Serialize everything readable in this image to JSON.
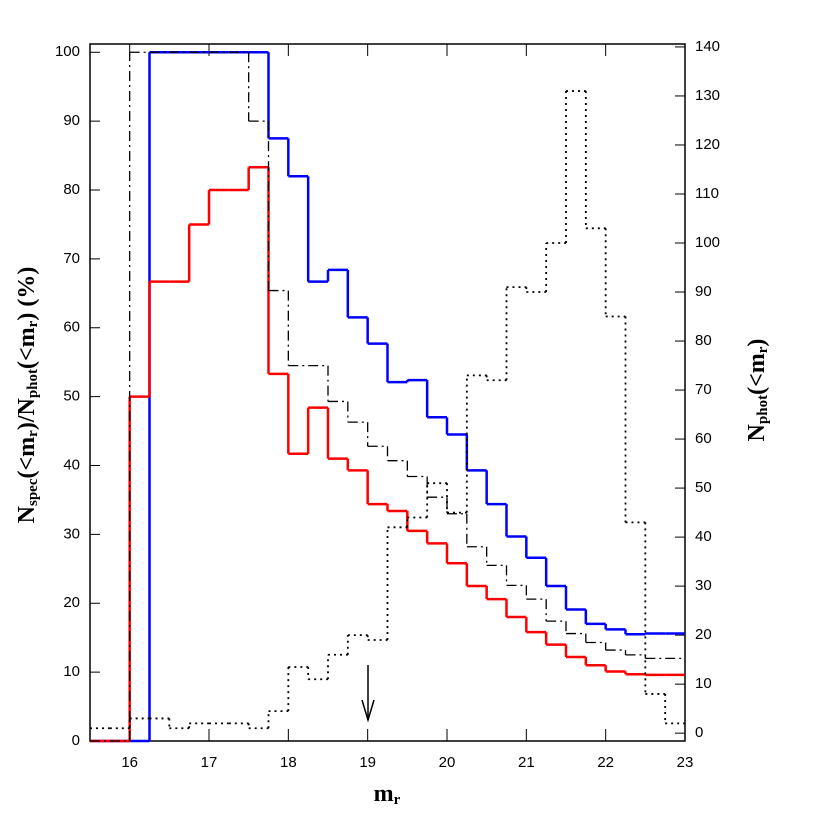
{
  "chart_data": {
    "type": "histogram",
    "xlabel": [
      {
        "text": "m"
      },
      {
        "text": "r",
        "sub": true
      }
    ],
    "ylabel": [
      {
        "text": "N"
      },
      {
        "text": "spec",
        "sub": true
      },
      {
        "text": "(<m"
      },
      {
        "text": "r",
        "sub": true
      },
      {
        "text": ")/N"
      },
      {
        "text": "phot",
        "sub": true
      },
      {
        "text": "(<m"
      },
      {
        "text": "r",
        "sub": true
      },
      {
        "text": ")  (%)"
      }
    ],
    "y2label": [
      {
        "text": "N"
      },
      {
        "text": "phot",
        "sub": true
      },
      {
        "text": "(<m"
      },
      {
        "text": "r",
        "sub": true
      },
      {
        "text": ")"
      }
    ],
    "bins": [
      15.5,
      15.75,
      16,
      16.25,
      16.5,
      16.75,
      17,
      17.25,
      17.5,
      17.75,
      18,
      18.25,
      18.5,
      18.75,
      19,
      19.25,
      19.5,
      19.75,
      20,
      20.25,
      20.5,
      20.75,
      21,
      21.25,
      21.5,
      21.75,
      22,
      22.25,
      22.5,
      22.75,
      23
    ],
    "series": [
      {
        "color": "#0000ff",
        "line_style": "solid",
        "axis": "y",
        "values": [
          0,
          0,
          0,
          100,
          100,
          100,
          100,
          100,
          100,
          87.5,
          82,
          66.7,
          68.4,
          61.5,
          57.7,
          52.1,
          52.4,
          47,
          44.5,
          39.3,
          34.4,
          29.7,
          26.6,
          22.5,
          19.1,
          17,
          16.2,
          15.5,
          15.6,
          15.6
        ]
      },
      {
        "color": "#ff0000",
        "line_style": "solid",
        "axis": "y",
        "values": [
          0,
          0,
          50,
          66.7,
          66.7,
          75,
          80,
          80,
          83.3,
          53.3,
          41.7,
          48.4,
          41,
          39.3,
          34.4,
          33.4,
          30.5,
          28.7,
          25.8,
          22.5,
          20.6,
          18,
          15.8,
          14,
          12.2,
          11,
          10.1,
          9.7,
          9.6,
          9.6
        ]
      },
      {
        "color": "#000000",
        "line_style": "dashdot",
        "axis": "y",
        "values": [
          0,
          0,
          100,
          100,
          100,
          100,
          100,
          100,
          90,
          65.4,
          54.5,
          54.5,
          49.3,
          46.3,
          42.8,
          40.7,
          38.4,
          35.4,
          33,
          28.2,
          25.5,
          22.6,
          20.6,
          17.4,
          15.6,
          14.3,
          13.2,
          12.5,
          12,
          12
        ]
      },
      {
        "color": "#000000",
        "line_style": "dotted",
        "axis": "y2",
        "values": [
          1,
          1,
          3,
          3,
          1,
          2,
          2,
          2,
          1,
          4.5,
          13.5,
          11,
          16,
          20,
          19,
          42,
          44,
          51,
          45,
          73,
          72,
          91,
          90,
          100,
          131,
          103,
          85,
          43,
          8,
          2
        ]
      }
    ],
    "xlim": [
      15.5,
      23
    ],
    "xticks": [
      16,
      17,
      18,
      19,
      20,
      21,
      22,
      23
    ],
    "ylim": [
      0,
      101.2
    ],
    "yticks": [
      0,
      10,
      20,
      30,
      40,
      50,
      60,
      70,
      80,
      90,
      100
    ],
    "y2lim": [
      -1.6,
      140.6
    ],
    "y2ticks": [
      0,
      10,
      20,
      30,
      40,
      50,
      60,
      70,
      80,
      90,
      100,
      110,
      120,
      130,
      140
    ]
  }
}
